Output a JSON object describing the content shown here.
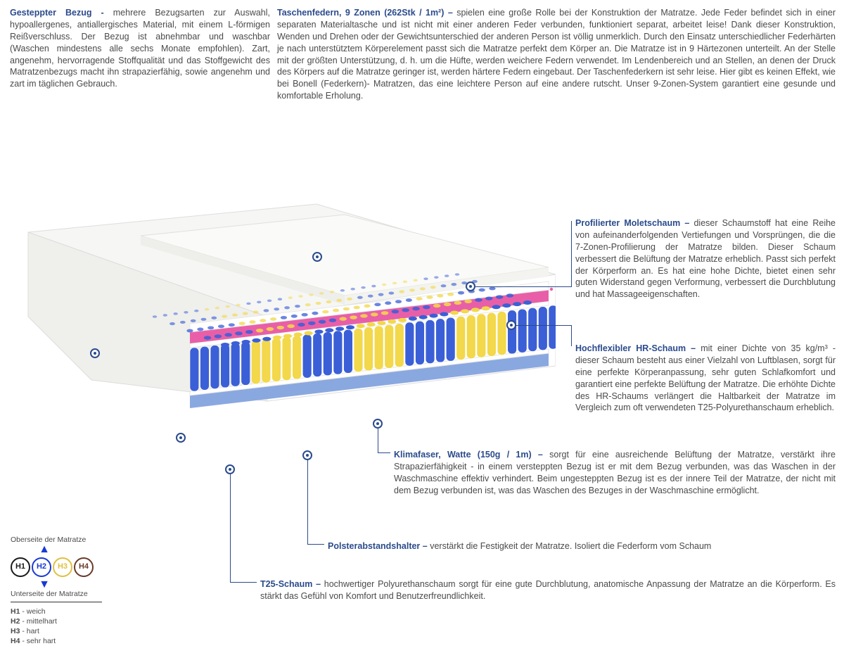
{
  "colors": {
    "title": "#2b4b8c",
    "text": "#4a4a4a",
    "marker": "#2b4b8c",
    "spring_blue": "#3b5fd6",
    "spring_yellow": "#f2d84a",
    "foam_pink": "#e85fa8",
    "foam_base": "#8aa8e0",
    "cover": "#f2f2f0"
  },
  "top": {
    "bezug": {
      "title": "Gesteppter Bezug - ",
      "text": "mehrere Bezugsarten zur Auswahl, hypoallergenes, antiallergisches Material, mit einem L-förmigen Reißverschluss. Der Bezug ist abnehmbar und waschbar (Waschen mindestens alle sechs Monate empfohlen). Zart, angenehm, hervorragende Stoffqualität und das Stoffgewicht des Matratzenbezugs macht ihn strapazierfähig, sowie angenehm und zart im täglichen Gebrauch."
    },
    "federn": {
      "title": "Taschenfedern, 9 Zonen (262Stk / 1m²) – ",
      "text": "spielen eine große Rolle bei der Konstruktion der Matratze. Jede Feder befindet sich in einer separaten Materialtasche und ist nicht mit einer anderen Feder verbunden, funktioniert separat, arbeitet leise! Dank dieser Konstruktion, Wenden und Drehen oder der Gewichtsunterschied der anderen Person ist völlig unmerklich. Durch den Einsatz unterschiedlicher Federhärten je nach unterstütztem Körperelement passt sich die Matratze perfekt dem Körper an. Die Matratze ist in 9 Härtezonen unterteilt. An der Stelle mit der größten Unterstützung, d. h. um die Hüfte, werden weichere Federn verwendet. Im Lendenbereich und an Stellen, an denen der Druck des Körpers auf die Matratze geringer ist, werden härtere Federn eingebaut. Der Taschenfederkern ist sehr leise. Hier gibt es keinen Effekt, wie bei Bonell (Federkern)- Matratzen, das eine leichtere Person auf eine andere rutscht. Unser 9-Zonen-System garantiert eine gesunde und komfortable Erholung."
    }
  },
  "right": {
    "molet": {
      "title": "Profilierter Moletschaum – ",
      "text": "dieser Schaumstoff hat eine Reihe von aufeinanderfolgenden Vertiefungen und Vorsprüngen, die die 7-Zonen-Profilierung der Matratze bilden. Dieser Schaum verbessert die Belüftung der Matratze erheblich. Passt sich perfekt der Körperform an. Es hat eine hohe Dichte, bietet einen sehr guten Widerstand gegen Verformung, verbessert die Durchblutung und hat Massageeigenschaften."
    },
    "hr": {
      "title": "Hochflexibler HR-Schaum – ",
      "text": "mit einer Dichte von 35 kg/m³ - dieser Schaum besteht aus einer Vielzahl von Luftblasen, sorgt für eine perfekte Körperanpassung, sehr guten Schlafkomfort und garantiert eine perfekte Belüftung der Matratze. Die erhöhte Dichte des HR-Schaums verlängert die Haltbarkeit der Matratze im Vergleich zum oft verwendeten T25-Polyurethanschaum erheblich."
    },
    "klima": {
      "title": "Klimafaser, Watte (150g / 1m) – ",
      "text": "sorgt für eine ausreichende Belüftung der Matratze, verstärkt ihre Strapazierfähigkeit - in einem versteppten Bezug ist er mit dem Bezug verbunden, was das Waschen in der Waschmaschine effektiv verhindert. Beim ungesteppten Bezug ist es der innere Teil der Matratze, der nicht mit dem Bezug verbunden ist, was das Waschen des Bezuges in der Waschmaschine ermöglicht."
    },
    "polster": {
      "title": "Polsterabstandshalter – ",
      "text": "verstärkt die Festigkeit der Matratze. Isoliert die Federform vom Schaum"
    },
    "t25": {
      "title": "T25-Schaum – ",
      "text": "hochwertiger Polyurethanschaum sorgt für eine gute Durchblutung, anatomische Anpassung der Matratze an die Körperform. Es stärkt das Gefühl von Komfort und Benutzerfreundlichkeit."
    }
  },
  "legend": {
    "top_label": "Oberseite der Matratze",
    "bottom_label": "Unterseite der Matratze",
    "h": [
      {
        "code": "H1",
        "label": "weich",
        "color": "#1a1a1a"
      },
      {
        "code": "H2",
        "label": "mittelhart",
        "color": "#1a3ad6"
      },
      {
        "code": "H3",
        "label": "hart",
        "color": "#e0c040"
      },
      {
        "code": "H4",
        "label": "sehr hart",
        "color": "#6b3a2a"
      }
    ]
  },
  "mattress": {
    "spring_pattern": [
      "B",
      "B",
      "Y",
      "Y",
      "B",
      "B",
      "Y",
      "Y",
      "B",
      "B",
      "Y",
      "Y",
      "B",
      "B"
    ]
  }
}
